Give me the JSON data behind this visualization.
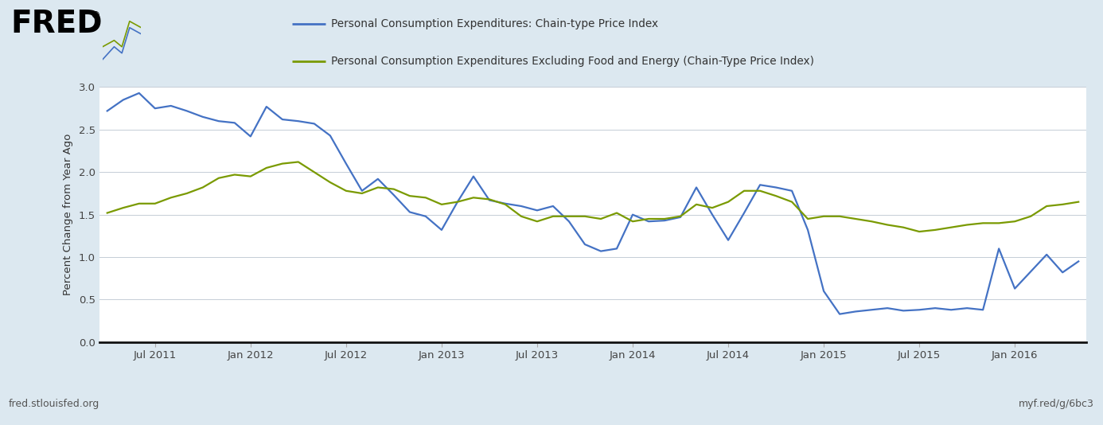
{
  "legend_line1": "Personal Consumption Expenditures: Chain-type Price Index",
  "legend_line2": "Personal Consumption Expenditures Excluding Food and Energy (Chain-Type Price Index)",
  "ylabel": "Percent Change from Year Ago",
  "background_color": "#dce8f0",
  "plot_bg_color": "#ffffff",
  "line1_color": "#4472c4",
  "line2_color": "#7a9a01",
  "ylim": [
    0.0,
    3.0
  ],
  "yticks": [
    0.0,
    0.5,
    1.0,
    1.5,
    2.0,
    2.5,
    3.0
  ],
  "fred_text": "fred.stlouisfed.org",
  "myf_text": "myf.red/g/6bc3",
  "pce": [
    2.72,
    2.85,
    2.93,
    2.75,
    2.78,
    2.72,
    2.65,
    2.6,
    2.58,
    2.42,
    2.77,
    2.62,
    2.6,
    2.57,
    2.43,
    2.1,
    1.78,
    1.92,
    1.73,
    1.53,
    1.48,
    1.32,
    1.65,
    1.95,
    1.67,
    1.63,
    1.6,
    1.55,
    1.6,
    1.42,
    1.15,
    1.07,
    1.1,
    1.5,
    1.42,
    1.43,
    1.47,
    1.82,
    1.5,
    1.2,
    1.52,
    1.85,
    1.82,
    1.78,
    1.32,
    0.6,
    0.33,
    0.36,
    0.38,
    0.4,
    0.37,
    0.38,
    0.4,
    0.38,
    0.4,
    0.38,
    1.1,
    0.63,
    0.83,
    1.03,
    0.82,
    0.95
  ],
  "core_pce": [
    1.52,
    1.58,
    1.63,
    1.63,
    1.7,
    1.75,
    1.82,
    1.93,
    1.97,
    1.95,
    2.05,
    2.1,
    2.12,
    2.0,
    1.88,
    1.78,
    1.75,
    1.82,
    1.8,
    1.72,
    1.7,
    1.62,
    1.65,
    1.7,
    1.68,
    1.62,
    1.48,
    1.42,
    1.48,
    1.48,
    1.48,
    1.45,
    1.52,
    1.42,
    1.45,
    1.45,
    1.48,
    1.62,
    1.58,
    1.65,
    1.78,
    1.78,
    1.72,
    1.65,
    1.45,
    1.48,
    1.48,
    1.45,
    1.42,
    1.38,
    1.35,
    1.3,
    1.32,
    1.35,
    1.38,
    1.4,
    1.4,
    1.42,
    1.48,
    1.6,
    1.62,
    1.65
  ],
  "xtick_labels": [
    "Jul 2011",
    "Jan 2012",
    "Jul 2012",
    "Jan 2013",
    "Jul 2013",
    "Jan 2014",
    "Jul 2014",
    "Jan 2015",
    "Jul 2015",
    "Jan 2016"
  ]
}
